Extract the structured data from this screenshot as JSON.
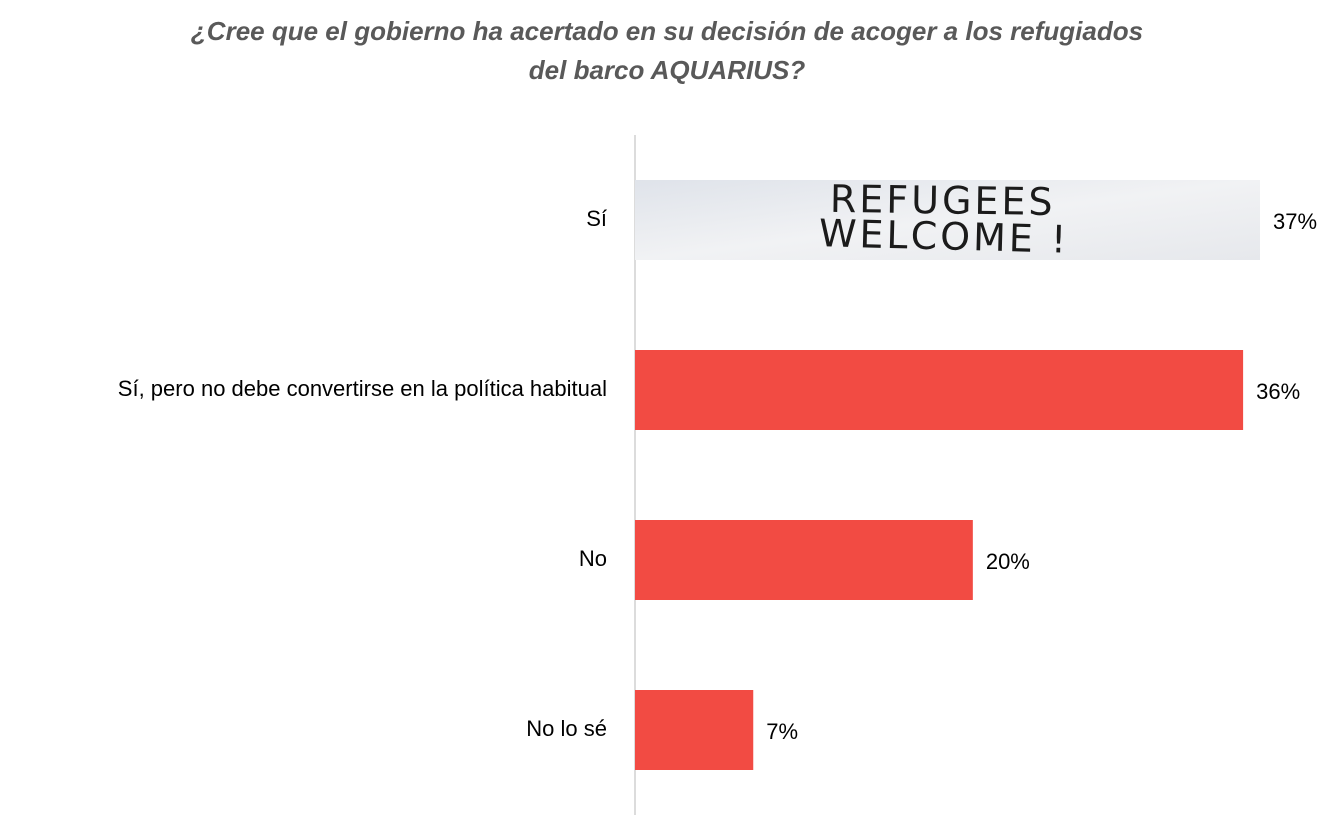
{
  "chart_data": {
    "type": "hbar",
    "title": [
      "¿Cree que el gobierno ha acertado en su decisión de acoger a los refugiados",
      "del barco AQUARIUS?"
    ],
    "categories": [
      "Sí",
      "Sí, pero no debe convertirse en la política habitual",
      "No",
      "No lo sé"
    ],
    "values": [
      37,
      36,
      20,
      7
    ],
    "value_labels": [
      "37%",
      "36%",
      "20%",
      "7%"
    ],
    "color": "#f24b43",
    "image_text": [
      "REFUGEES",
      "WELCOME !"
    ],
    "xlim": [
      0,
      37
    ]
  }
}
